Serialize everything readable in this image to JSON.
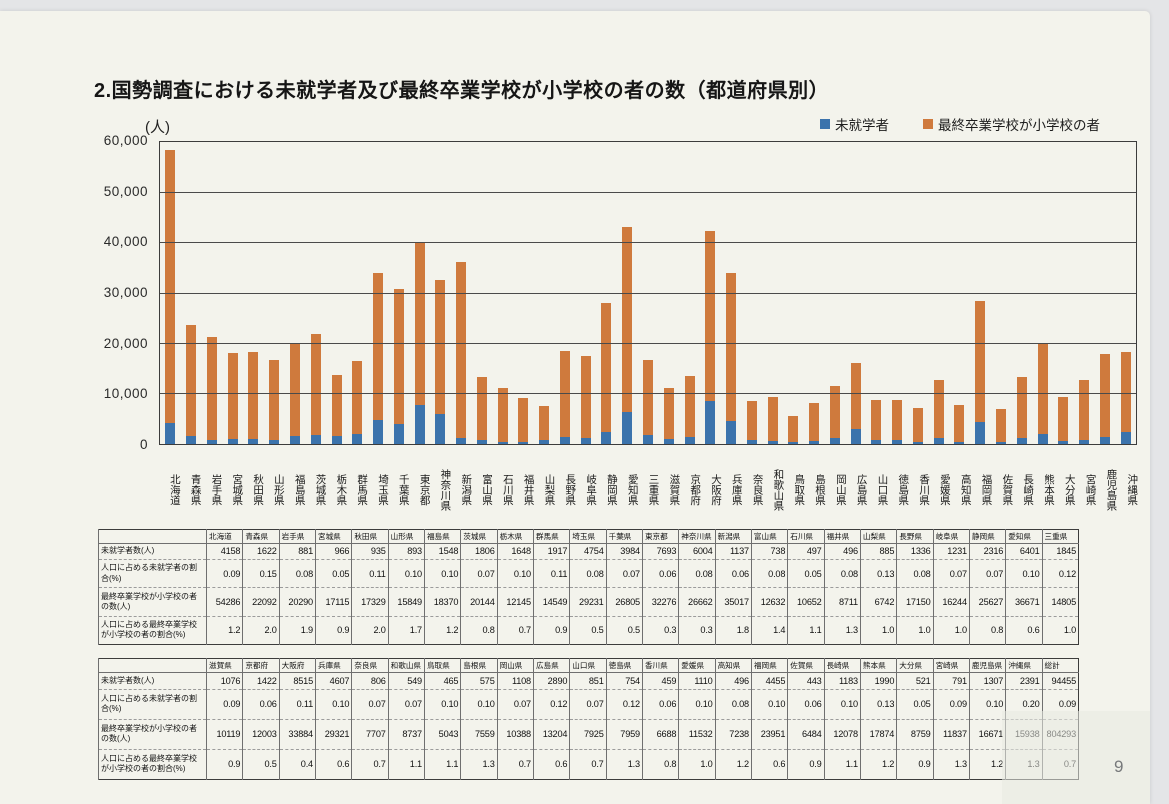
{
  "page": {
    "title": "2.国勢調査における未就学者及び最終卒業学校が小学校の者の数（都道府県別）",
    "page_number": "9"
  },
  "chart": {
    "unit_label": "(人)",
    "legend": [
      {
        "label": "未就学者",
        "color": "#3b73ac"
      },
      {
        "label": "最終卒業学校が小学校の者",
        "color": "#cf7a3d"
      }
    ],
    "y_ticks": [
      "60,000",
      "50,000",
      "40,000",
      "30,000",
      "20,000",
      "10,000",
      "0"
    ]
  },
  "chart_data": {
    "type": "bar",
    "stacked": true,
    "title": "国勢調査における未就学者及び最終卒業学校が小学校の者の数（都道府県別）",
    "ylabel": "(人)",
    "ylim": [
      0,
      60000
    ],
    "grid": true,
    "legend_position": "top-right",
    "categories": [
      "北海道",
      "青森県",
      "岩手県",
      "宮城県",
      "秋田県",
      "山形県",
      "福島県",
      "茨城県",
      "栃木県",
      "群馬県",
      "埼玉県",
      "千葉県",
      "東京都",
      "神奈川県",
      "新潟県",
      "富山県",
      "石川県",
      "福井県",
      "山梨県",
      "長野県",
      "岐阜県",
      "静岡県",
      "愛知県",
      "三重県",
      "滋賀県",
      "京都府",
      "大阪府",
      "兵庫県",
      "奈良県",
      "和歌山県",
      "鳥取県",
      "島根県",
      "岡山県",
      "広島県",
      "山口県",
      "徳島県",
      "香川県",
      "愛媛県",
      "高知県",
      "福岡県",
      "佐賀県",
      "長崎県",
      "熊本県",
      "大分県",
      "宮崎県",
      "鹿児島県",
      "沖縄県"
    ],
    "series": [
      {
        "name": "未就学者",
        "color": "#3b73ac",
        "values": [
          4158,
          1622,
          881,
          966,
          935,
          893,
          1548,
          1806,
          1648,
          1917,
          4754,
          3984,
          7693,
          6004,
          1137,
          738,
          497,
          496,
          885,
          1336,
          1231,
          2316,
          6401,
          1845,
          1076,
          1422,
          8515,
          4607,
          806,
          549,
          465,
          575,
          1108,
          2890,
          851,
          754,
          459,
          1110,
          496,
          4455,
          443,
          1183,
          1990,
          521,
          791,
          1307,
          2391
        ]
      },
      {
        "name": "最終卒業学校が小学校の者",
        "color": "#cf7a3d",
        "values": [
          54286,
          22092,
          20290,
          17115,
          17329,
          15849,
          18370,
          20144,
          12145,
          14549,
          29231,
          26805,
          32276,
          26662,
          35017,
          12632,
          10652,
          8711,
          6742,
          17150,
          16244,
          25627,
          36671,
          14805,
          10119,
          12003,
          33884,
          29321,
          7707,
          8737,
          5043,
          7559,
          10388,
          13204,
          7925,
          7959,
          6688,
          11532,
          7238,
          23951,
          6484,
          12078,
          17874,
          8759,
          11837,
          16671,
          15938
        ]
      }
    ]
  },
  "tables": [
    {
      "columns": [
        "北海道",
        "青森県",
        "岩手県",
        "宮城県",
        "秋田県",
        "山形県",
        "福島県",
        "茨城県",
        "栃木県",
        "群馬県",
        "埼玉県",
        "千葉県",
        "東京都",
        "神奈川県",
        "新潟県",
        "富山県",
        "石川県",
        "福井県",
        "山梨県",
        "長野県",
        "岐阜県",
        "静岡県",
        "愛知県",
        "三重県"
      ],
      "rows": [
        {
          "header": "未就学者数(人)",
          "values": [
            "4158",
            "1622",
            "881",
            "966",
            "935",
            "893",
            "1548",
            "1806",
            "1648",
            "1917",
            "4754",
            "3984",
            "7693",
            "6004",
            "1137",
            "738",
            "497",
            "496",
            "885",
            "1336",
            "1231",
            "2316",
            "6401",
            "1845"
          ]
        },
        {
          "header": "人口に占める未就学者の割合(%)",
          "values": [
            "0.09",
            "0.15",
            "0.08",
            "0.05",
            "0.11",
            "0.10",
            "0.10",
            "0.07",
            "0.10",
            "0.11",
            "0.08",
            "0.07",
            "0.06",
            "0.08",
            "0.06",
            "0.08",
            "0.05",
            "0.08",
            "0.13",
            "0.08",
            "0.07",
            "0.07",
            "0.10",
            "0.12"
          ]
        },
        {
          "header": "最終卒業学校が小学校の者の数(人)",
          "values": [
            "54286",
            "22092",
            "20290",
            "17115",
            "17329",
            "15849",
            "18370",
            "20144",
            "12145",
            "14549",
            "29231",
            "26805",
            "32276",
            "26662",
            "35017",
            "12632",
            "10652",
            "8711",
            "6742",
            "17150",
            "16244",
            "25627",
            "36671",
            "14805"
          ]
        },
        {
          "header": "人口に占める最終卒業学校が小学校の者の割合(%)",
          "values": [
            "1.2",
            "2.0",
            "1.9",
            "0.9",
            "2.0",
            "1.7",
            "1.2",
            "0.8",
            "0.7",
            "0.9",
            "0.5",
            "0.5",
            "0.3",
            "0.3",
            "1.8",
            "1.4",
            "1.1",
            "1.3",
            "1.0",
            "1.0",
            "1.0",
            "0.8",
            "0.6",
            "1.0"
          ]
        }
      ]
    },
    {
      "columns": [
        "滋賀県",
        "京都府",
        "大阪府",
        "兵庫県",
        "奈良県",
        "和歌山県",
        "鳥取県",
        "島根県",
        "岡山県",
        "広島県",
        "山口県",
        "徳島県",
        "香川県",
        "愛媛県",
        "高知県",
        "福岡県",
        "佐賀県",
        "長崎県",
        "熊本県",
        "大分県",
        "宮崎県",
        "鹿児島県",
        "沖縄県",
        "総計"
      ],
      "rows": [
        {
          "header": "未就学者数(人)",
          "values": [
            "1076",
            "1422",
            "8515",
            "4607",
            "806",
            "549",
            "465",
            "575",
            "1108",
            "2890",
            "851",
            "754",
            "459",
            "1110",
            "496",
            "4455",
            "443",
            "1183",
            "1990",
            "521",
            "791",
            "1307",
            "2391",
            "94455"
          ]
        },
        {
          "header": "人口に占める未就学者の割合(%)",
          "values": [
            "0.09",
            "0.06",
            "0.11",
            "0.10",
            "0.07",
            "0.07",
            "0.10",
            "0.10",
            "0.07",
            "0.12",
            "0.07",
            "0.12",
            "0.06",
            "0.10",
            "0.08",
            "0.10",
            "0.06",
            "0.10",
            "0.13",
            "0.05",
            "0.09",
            "0.10",
            "0.20",
            "0.09"
          ]
        },
        {
          "header": "最終卒業学校が小学校の者の数(人)",
          "values": [
            "10119",
            "12003",
            "33884",
            "29321",
            "7707",
            "8737",
            "5043",
            "7559",
            "10388",
            "13204",
            "7925",
            "7959",
            "6688",
            "11532",
            "7238",
            "23951",
            "6484",
            "12078",
            "17874",
            "8759",
            "11837",
            "16671",
            "15938",
            "804293"
          ]
        },
        {
          "header": "人口に占める最終卒業学校が小学校の者の割合(%)",
          "values": [
            "0.9",
            "0.5",
            "0.4",
            "0.6",
            "0.7",
            "1.1",
            "1.1",
            "1.3",
            "0.7",
            "0.6",
            "0.7",
            "1.3",
            "0.8",
            "1.0",
            "1.2",
            "0.6",
            "0.9",
            "1.1",
            "1.2",
            "0.9",
            "1.3",
            "1.2",
            "1.3",
            "0.7"
          ]
        }
      ]
    }
  ]
}
